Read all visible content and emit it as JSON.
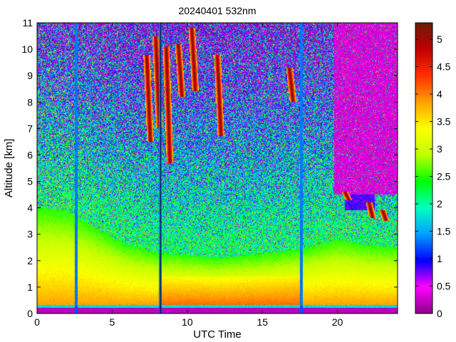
{
  "chart_data": {
    "type": "heatmap",
    "title": "20240401 532nm",
    "xlabel": "UTC Time",
    "ylabel": "Altitude [km]",
    "xlim": [
      0,
      24
    ],
    "ylim": [
      0,
      11
    ],
    "x_ticks": [
      0,
      5,
      10,
      15,
      20
    ],
    "x_tick_labels": [
      "0",
      "5",
      "10",
      "15",
      "20"
    ],
    "y_ticks": [
      0,
      1,
      2,
      3,
      4,
      5,
      6,
      7,
      8,
      9,
      10,
      11
    ],
    "y_tick_labels": [
      "0",
      "1",
      "2",
      "3",
      "4",
      "5",
      "6",
      "7",
      "8",
      "9",
      "10",
      "11"
    ],
    "colorbar": {
      "range": [
        0,
        5.3
      ],
      "ticks": [
        0,
        0.5,
        1,
        1.5,
        2,
        2.5,
        3,
        3.5,
        4,
        4.5,
        5
      ],
      "tick_labels": [
        "0",
        "0.5",
        "1",
        "1.5",
        "2",
        "2.5",
        "3",
        "3.5",
        "4",
        "4.5",
        "5"
      ],
      "colormap": [
        "#8b008b",
        "#ff00ff",
        "#0000ff",
        "#00a0ff",
        "#00ffc0",
        "#00ff00",
        "#c0ff00",
        "#ffff00",
        "#ffa000",
        "#ff3000",
        "#c00000",
        "#6b1a0a"
      ]
    },
    "features": {
      "instrument_gaps_utc": [
        2.6,
        8.2,
        17.6
      ],
      "boundary_layer_top_km": [
        [
          0,
          4.0
        ],
        [
          2,
          3.9
        ],
        [
          4,
          3.2
        ],
        [
          6,
          2.6
        ],
        [
          8,
          2.3
        ],
        [
          10,
          2.2
        ],
        [
          12,
          2.1
        ],
        [
          14,
          2.2
        ],
        [
          16,
          2.3
        ],
        [
          18,
          2.5
        ],
        [
          20,
          2.8
        ],
        [
          22,
          2.6
        ],
        [
          24,
          2.5
        ]
      ],
      "high_cloud_streaks": [
        {
          "x": 7.3,
          "top": 9.8,
          "bottom": 6.5
        },
        {
          "x": 8.6,
          "top": 10.1,
          "bottom": 5.7
        },
        {
          "x": 7.9,
          "top": 10.5,
          "bottom": 7.0
        },
        {
          "x": 9.4,
          "top": 10.2,
          "bottom": 8.2
        },
        {
          "x": 10.3,
          "top": 10.8,
          "bottom": 8.4
        },
        {
          "x": 12.0,
          "top": 9.8,
          "bottom": 6.7
        },
        {
          "x": 16.8,
          "top": 9.3,
          "bottom": 8.0
        },
        {
          "x": 20.5,
          "top": 4.6,
          "bottom": 4.3
        },
        {
          "x": 22.1,
          "top": 4.2,
          "bottom": 3.6
        },
        {
          "x": 23.0,
          "top": 3.9,
          "bottom": 3.5
        }
      ],
      "attenuated_region_utc": [
        19.8,
        24
      ],
      "attenuated_region_floor_km": 4.5
    }
  }
}
